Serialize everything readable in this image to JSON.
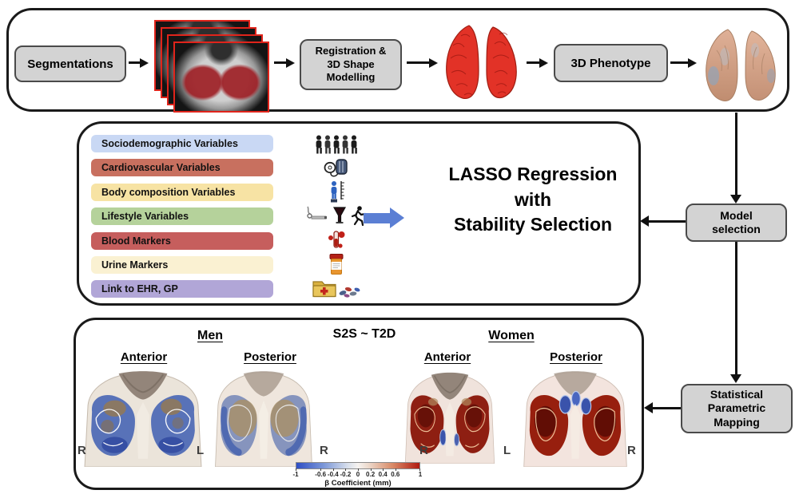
{
  "top_row": {
    "segmentations_label": "Segmentations",
    "registration_label": "Registration &\n3D Shape\nModelling",
    "phenotype_label": "3D Phenotype"
  },
  "variables_panel": {
    "items": [
      {
        "label": "Sociodemographic Variables",
        "color": "#c9d8f4",
        "icon": "people-group-icon"
      },
      {
        "label": "Cardiovascular Variables",
        "color": "#c8705f",
        "icon": "blood-pressure-monitor-icon"
      },
      {
        "label": "Body composition Variables",
        "color": "#f7e3a4",
        "icon": "height-measure-icon"
      },
      {
        "label": "Lifestyle Variables",
        "color": "#b5d29b",
        "icon": "smoking-alcohol-exercise-icons"
      },
      {
        "label": "Blood Markers",
        "color": "#c65e5d",
        "icon": "blood-sample-icon"
      },
      {
        "label": "Urine Markers",
        "color": "#faf1d2",
        "icon": "urine-container-icon"
      },
      {
        "label": "Link to EHR, GP",
        "color": "#b1a6d7",
        "icon": "medical-records-pills-icon"
      }
    ],
    "lasso_label": "LASSO Regression\nwith\nStability Selection",
    "arrow_color": "#5b7fd4"
  },
  "flow": {
    "model_selection_label": "Model\nselection",
    "spm_label": "Statistical\nParametric\nMapping"
  },
  "results": {
    "title": "S2S ~ T2D",
    "men_label": "Men",
    "women_label": "Women",
    "men_views": [
      "Anterior",
      "Posterior"
    ],
    "women_views": [
      "Anterior",
      "Posterior"
    ],
    "side_labels": [
      "R",
      "L",
      "R",
      "R",
      "L",
      "R"
    ],
    "colorbar": {
      "ticks": [
        -1,
        -0.6,
        -0.4,
        -0.2,
        0,
        0.2,
        0.4,
        0.6,
        1
      ],
      "tick_labels": [
        "-1",
        "-0.6",
        "-0.4",
        "-0.2",
        "0",
        "0.2",
        "0.4",
        "0.6",
        "1"
      ],
      "label": "β Coefficient (mm)",
      "left_color": "#2f4ec4",
      "mid_color": "#f6f3f0",
      "right_color": "#b01a10"
    }
  }
}
